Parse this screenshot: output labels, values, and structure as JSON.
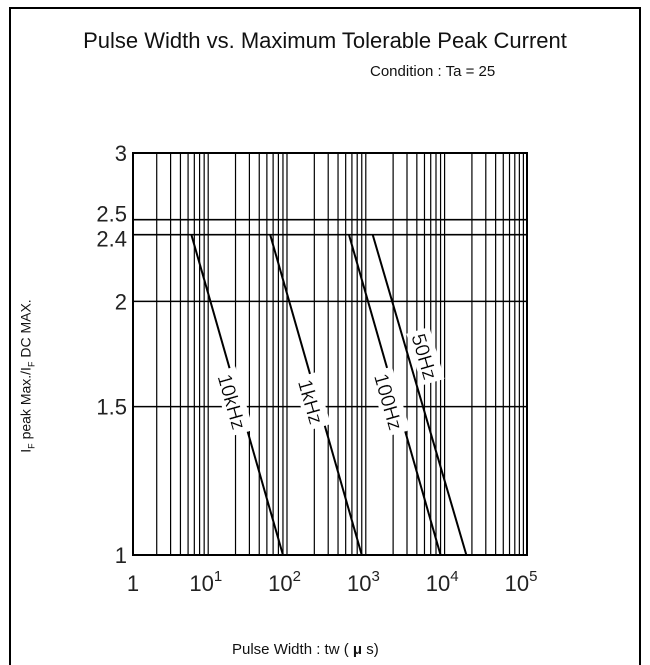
{
  "chart_data": {
    "type": "line",
    "title": "Pulse Width vs. Maximum Tolerable Peak Current",
    "subtitle": "Condition : Ta = 25",
    "xlabel": {
      "text": "Pulse Width : tw (",
      "mu": "μ",
      "unit": "s)"
    },
    "ylabel": {
      "p1": "I",
      "sub1": "F",
      "p2": " peak Max./I",
      "sub2": "F",
      "p3": " DC MAX."
    },
    "x_scale": "log",
    "y_scale": "log",
    "xlim": [
      1,
      100000
    ],
    "ylim": [
      1,
      3
    ],
    "x_ticks": [
      {
        "value": 1,
        "base": "1",
        "exp": ""
      },
      {
        "value": 10,
        "base": "10",
        "exp": "1"
      },
      {
        "value": 100,
        "base": "10",
        "exp": "2"
      },
      {
        "value": 1000,
        "base": "10",
        "exp": "3"
      },
      {
        "value": 10000,
        "base": "10",
        "exp": "4"
      },
      {
        "value": 100000,
        "base": "10",
        "exp": "5"
      }
    ],
    "y_ticks": [
      {
        "value": 1,
        "label": "1"
      },
      {
        "value": 1.5,
        "label": "1.5"
      },
      {
        "value": 2,
        "label": "2"
      },
      {
        "value": 2.4,
        "label": "2.4"
      },
      {
        "value": 2.5,
        "label": "2.5"
      },
      {
        "value": 3,
        "label": "3"
      }
    ],
    "grid": true,
    "series": [
      {
        "name": "10kHz",
        "x": [
          5.5,
          80
        ],
        "y": [
          2.4,
          1.0
        ],
        "label_at": [
          18,
          1.52
        ]
      },
      {
        "name": "1kHz",
        "x": [
          55,
          800
        ],
        "y": [
          2.4,
          1.0
        ],
        "label_at": [
          180,
          1.52
        ]
      },
      {
        "name": "100Hz",
        "x": [
          550,
          8000
        ],
        "y": [
          2.4,
          1.0
        ],
        "label_at": [
          1750,
          1.52
        ]
      },
      {
        "name": "50Hz",
        "x": [
          1100,
          17000
        ],
        "y": [
          2.4,
          1.0
        ],
        "label_at": [
          5000,
          1.72
        ]
      }
    ]
  }
}
